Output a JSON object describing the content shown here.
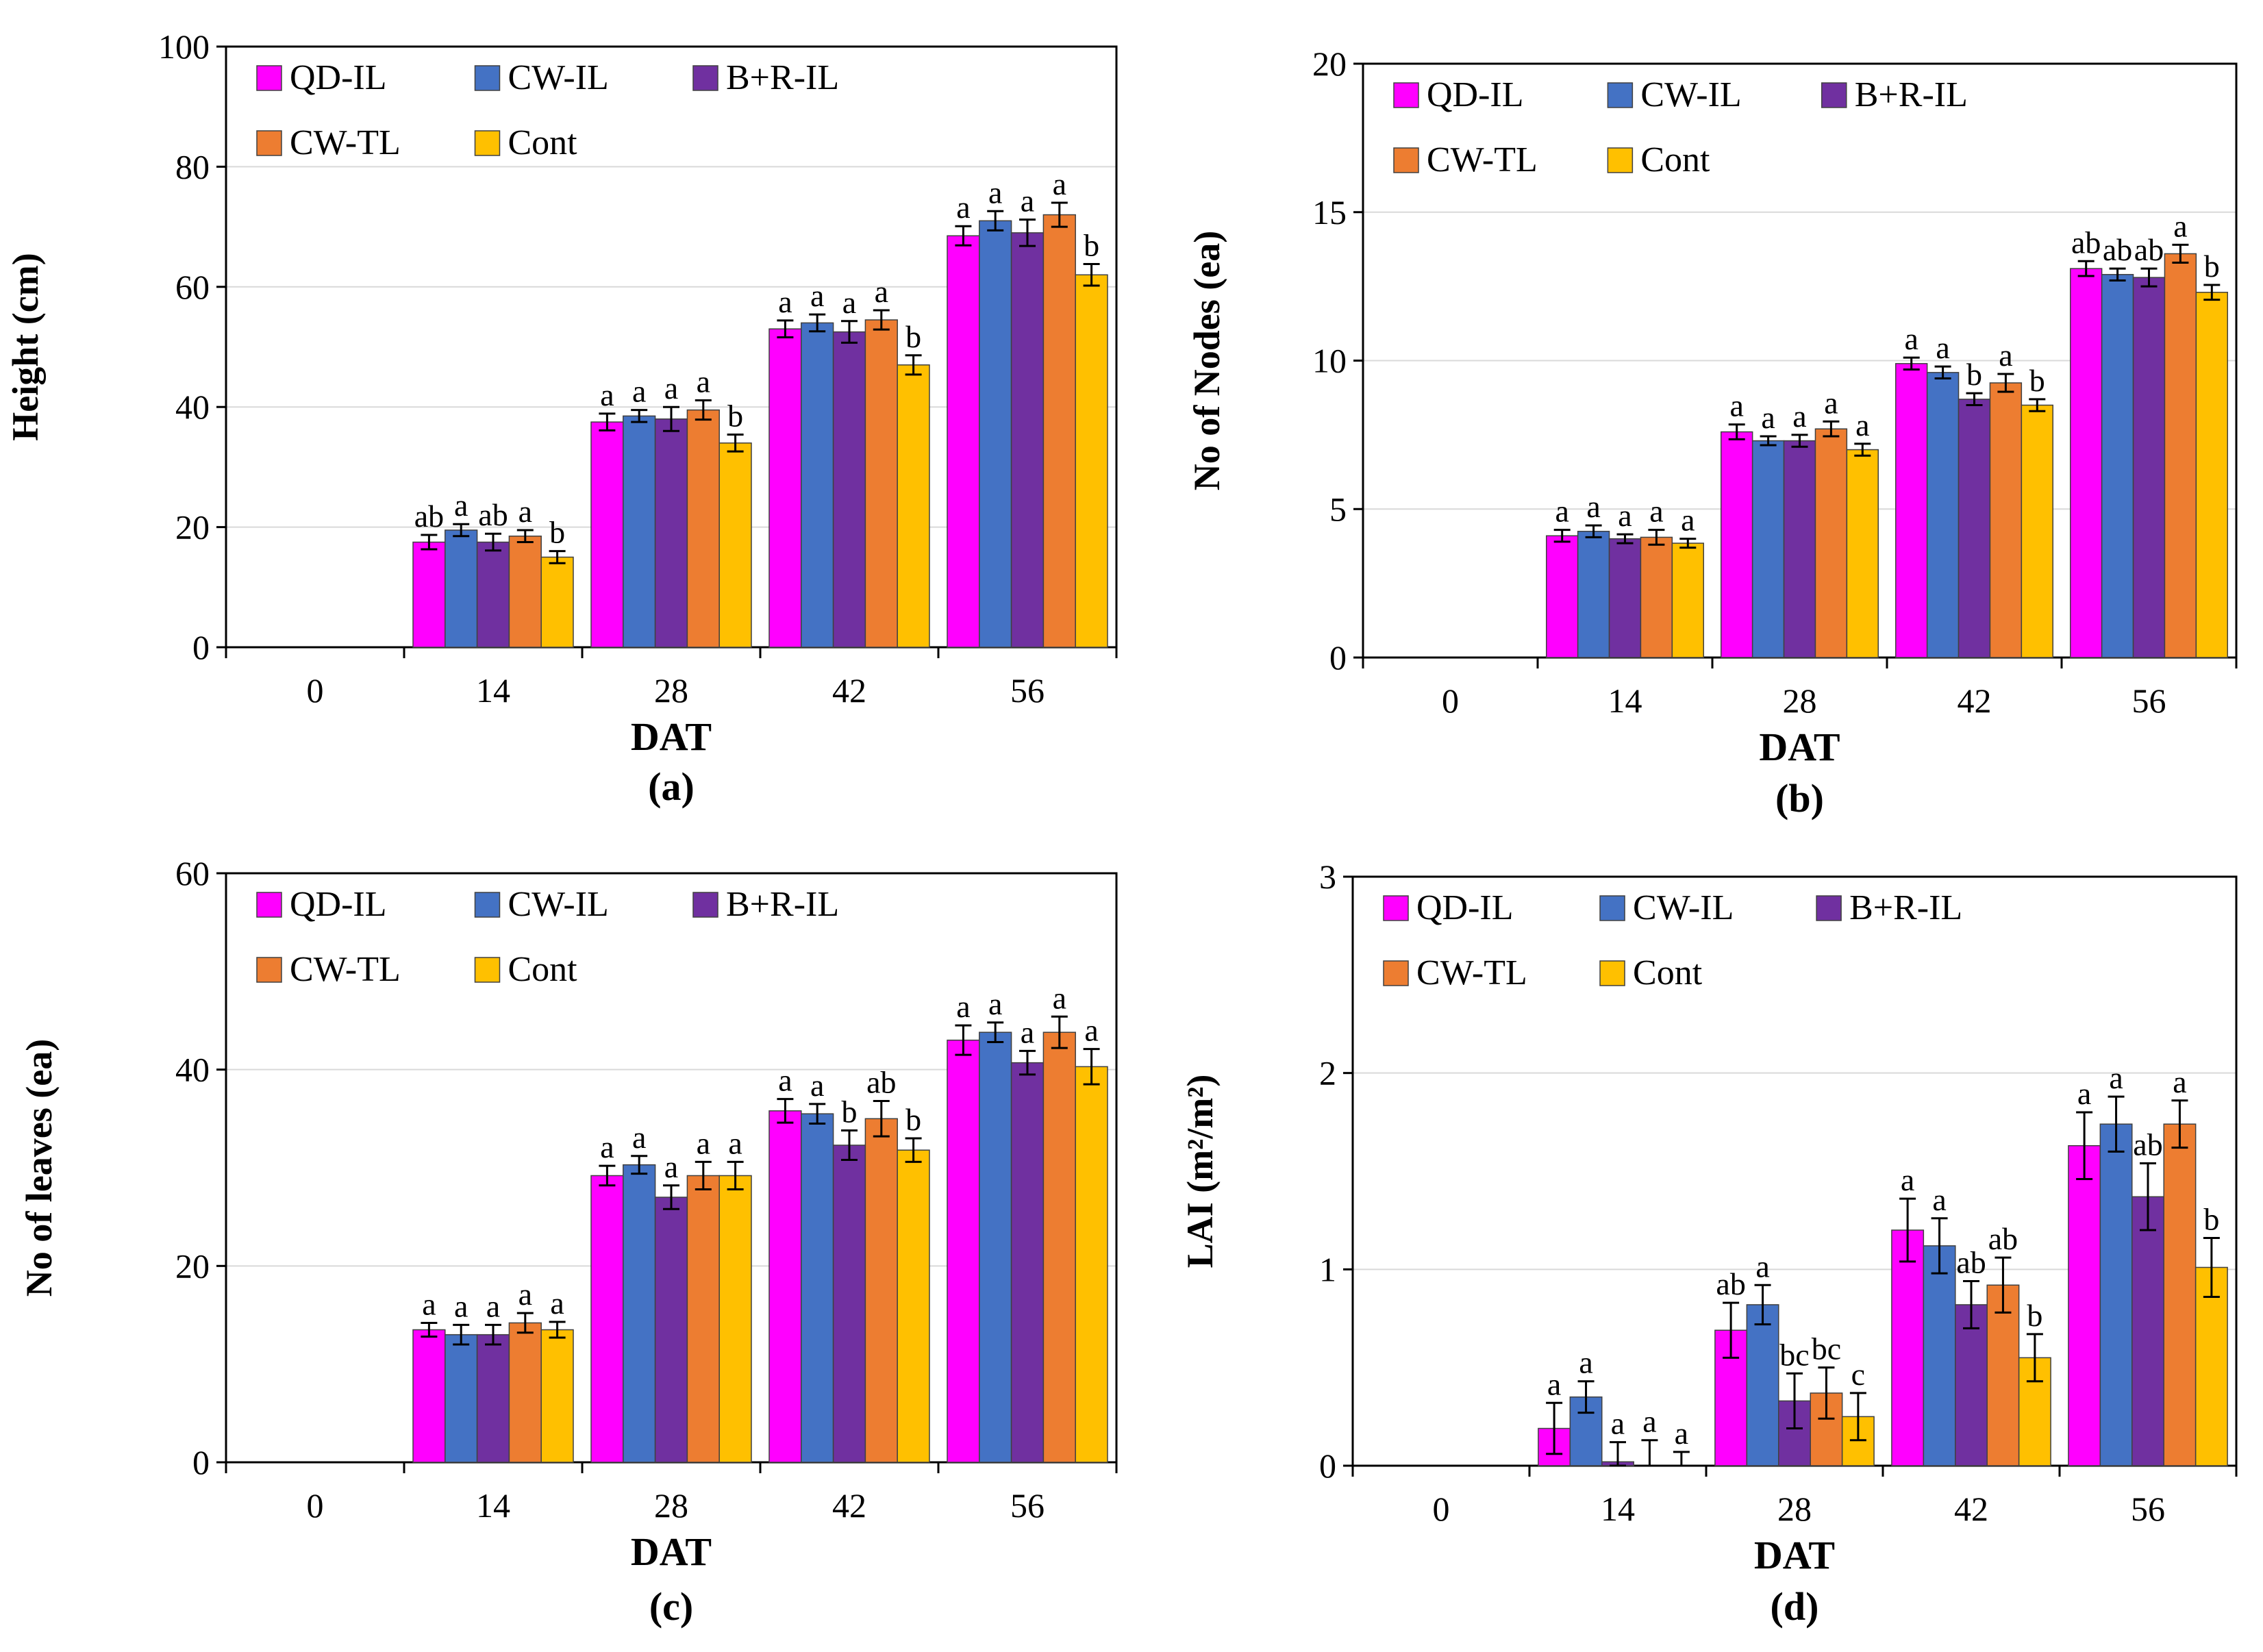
{
  "colors": {
    "QD-IL": "#ff00ff",
    "CW-IL": "#4472c4",
    "B+R-IL": "#7030a0",
    "CW-TL": "#ed7d31",
    "Cont": "#ffc000",
    "axis": "#000000",
    "grid": "#d9d9d9"
  },
  "chart_data": [
    {
      "id": "a",
      "type": "bar",
      "caption": "(a)",
      "xlabel": "DAT",
      "ylabel": "Height (cm)",
      "ylim": [
        0,
        100
      ],
      "yticks": [
        "0",
        "20",
        "40",
        "60",
        "80",
        "100"
      ],
      "categories": [
        "0",
        "14",
        "28",
        "42",
        "56"
      ],
      "legend": [
        "QD-IL",
        "CW-IL",
        "B+R-IL",
        "CW-TL",
        "Cont"
      ],
      "series": [
        {
          "name": "QD-IL",
          "values": [
            0,
            17.5,
            37.5,
            53,
            68.5
          ],
          "errors": [
            0,
            1.2,
            1.4,
            1.4,
            1.6
          ],
          "letters": [
            "",
            "ab",
            "a",
            "a",
            "a"
          ]
        },
        {
          "name": "CW-IL",
          "values": [
            0,
            19.5,
            38.5,
            54,
            71
          ],
          "errors": [
            0,
            1.0,
            1.0,
            1.4,
            1.6
          ],
          "letters": [
            "",
            "a",
            "a",
            "a",
            "a"
          ]
        },
        {
          "name": "B+R-IL",
          "values": [
            0,
            17.5,
            38,
            52.5,
            69
          ],
          "errors": [
            0,
            1.4,
            2.0,
            1.8,
            2.2
          ],
          "letters": [
            "",
            "ab",
            "a",
            "a",
            "a"
          ]
        },
        {
          "name": "CW-TL",
          "values": [
            0,
            18.5,
            39.5,
            54.5,
            72
          ],
          "errors": [
            0,
            1.0,
            1.6,
            1.6,
            2.0
          ],
          "letters": [
            "",
            "a",
            "a",
            "a",
            "a"
          ]
        },
        {
          "name": "Cont",
          "values": [
            0,
            15,
            34,
            47,
            62
          ],
          "errors": [
            0,
            1.0,
            1.4,
            1.6,
            1.8
          ],
          "letters": [
            "",
            "b",
            "b",
            "b",
            "b"
          ]
        }
      ]
    },
    {
      "id": "b",
      "type": "bar",
      "caption": "(b)",
      "xlabel": "DAT",
      "ylabel": "No of Nodes (ea)",
      "ylim": [
        0,
        20
      ],
      "yticks": [
        "0",
        "5",
        "10",
        "15",
        "20"
      ],
      "categories": [
        "0",
        "14",
        "28",
        "42",
        "56"
      ],
      "legend": [
        "QD-IL",
        "CW-IL",
        "B+R-IL",
        "CW-TL",
        "Cont"
      ],
      "series": [
        {
          "name": "QD-IL",
          "values": [
            0,
            4.1,
            7.6,
            9.9,
            13.1
          ],
          "errors": [
            0,
            0.2,
            0.25,
            0.2,
            0.25
          ],
          "letters": [
            "",
            "a",
            "a",
            "a",
            "ab"
          ]
        },
        {
          "name": "CW-IL",
          "values": [
            0,
            4.25,
            7.3,
            9.6,
            12.9
          ],
          "errors": [
            0,
            0.2,
            0.15,
            0.2,
            0.2
          ],
          "letters": [
            "",
            "a",
            "a",
            "a",
            "ab"
          ]
        },
        {
          "name": "B+R-IL",
          "values": [
            0,
            4.0,
            7.3,
            8.7,
            12.8
          ],
          "errors": [
            0,
            0.15,
            0.2,
            0.2,
            0.3
          ],
          "letters": [
            "",
            "a",
            "a",
            "b",
            "ab"
          ]
        },
        {
          "name": "CW-TL",
          "values": [
            0,
            4.05,
            7.7,
            9.25,
            13.6
          ],
          "errors": [
            0,
            0.25,
            0.25,
            0.3,
            0.3
          ],
          "letters": [
            "",
            "a",
            "a",
            "a",
            "a"
          ]
        },
        {
          "name": "Cont",
          "values": [
            0,
            3.85,
            7.0,
            8.5,
            12.3
          ],
          "errors": [
            0,
            0.15,
            0.2,
            0.2,
            0.25
          ],
          "letters": [
            "",
            "a",
            "a",
            "b",
            "b"
          ]
        }
      ]
    },
    {
      "id": "c",
      "type": "bar",
      "caption": "(c)",
      "xlabel": "DAT",
      "ylabel": "No of leaves (ea)",
      "ylim": [
        0,
        60
      ],
      "yticks": [
        "0",
        "20",
        "40",
        "60"
      ],
      "categories": [
        "0",
        "14",
        "28",
        "42",
        "56"
      ],
      "legend": [
        "QD-IL",
        "CW-IL",
        "B+R-IL",
        "CW-TL",
        "Cont"
      ],
      "series": [
        {
          "name": "QD-IL",
          "values": [
            0,
            13.5,
            29.2,
            35.8,
            43
          ],
          "errors": [
            0,
            0.7,
            1.0,
            1.2,
            1.5
          ],
          "letters": [
            "",
            "a",
            "a",
            "a",
            "a"
          ]
        },
        {
          "name": "CW-IL",
          "values": [
            0,
            13,
            30.3,
            35.5,
            43.8
          ],
          "errors": [
            0,
            1.0,
            0.9,
            1.0,
            1.0
          ],
          "letters": [
            "",
            "a",
            "a",
            "a",
            "a"
          ]
        },
        {
          "name": "B+R-IL",
          "values": [
            0,
            13,
            27,
            32.3,
            40.7
          ],
          "errors": [
            0,
            1.0,
            1.2,
            1.5,
            1.2
          ],
          "letters": [
            "",
            "a",
            "a",
            "b",
            "a"
          ]
        },
        {
          "name": "CW-TL",
          "values": [
            0,
            14.2,
            29.2,
            35,
            43.8
          ],
          "errors": [
            0,
            1.0,
            1.4,
            1.8,
            1.6
          ],
          "letters": [
            "",
            "a",
            "a",
            "ab",
            "a"
          ]
        },
        {
          "name": "Cont",
          "values": [
            0,
            13.5,
            29.2,
            31.8,
            40.3
          ],
          "errors": [
            0,
            0.8,
            1.4,
            1.2,
            1.8
          ],
          "letters": [
            "",
            "a",
            "a",
            "b",
            "a"
          ]
        }
      ]
    },
    {
      "id": "d",
      "type": "bar",
      "caption": "(d)",
      "xlabel": "DAT",
      "ylabel": "LAI (m²/m²)",
      "ylim": [
        0,
        3
      ],
      "yticks": [
        "0",
        "1",
        "2",
        "3"
      ],
      "categories": [
        "0",
        "14",
        "28",
        "42",
        "56"
      ],
      "legend": [
        "QD-IL",
        "CW-IL",
        "B+R-IL",
        "CW-TL",
        "Cont"
      ],
      "series": [
        {
          "name": "QD-IL",
          "values": [
            0,
            0.19,
            0.69,
            1.2,
            1.63
          ],
          "errors": [
            0,
            0.13,
            0.14,
            0.16,
            0.17
          ],
          "letters": [
            "",
            "a",
            "ab",
            "a",
            "a"
          ]
        },
        {
          "name": "CW-IL",
          "values": [
            0,
            0.35,
            0.82,
            1.12,
            1.74
          ],
          "errors": [
            0,
            0.08,
            0.1,
            0.14,
            0.14
          ],
          "letters": [
            "",
            "a",
            "a",
            "a",
            "a"
          ]
        },
        {
          "name": "B+R-IL",
          "values": [
            0,
            0.02,
            0.33,
            0.82,
            1.37
          ],
          "errors": [
            0,
            0.1,
            0.14,
            0.12,
            0.17
          ],
          "letters": [
            "",
            "a",
            "bc",
            "ab",
            "ab"
          ]
        },
        {
          "name": "CW-TL",
          "values": [
            0,
            0.0,
            0.37,
            0.92,
            1.74
          ],
          "errors": [
            0,
            0.13,
            0.13,
            0.14,
            0.12
          ],
          "letters": [
            "",
            "a",
            "bc",
            "ab",
            "a"
          ]
        },
        {
          "name": "Cont",
          "values": [
            0,
            0.0,
            0.25,
            0.55,
            1.01
          ],
          "errors": [
            0,
            0.07,
            0.12,
            0.12,
            0.15
          ],
          "letters": [
            "",
            "a",
            "c",
            "b",
            "b"
          ]
        }
      ]
    }
  ]
}
